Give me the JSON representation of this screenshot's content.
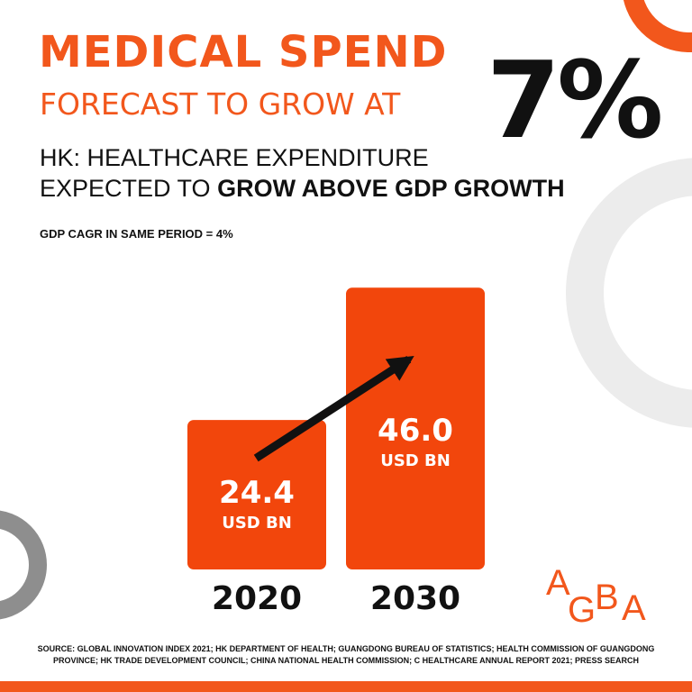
{
  "headline": {
    "title": "MEDICAL SPEND",
    "subtitle": "FORECAST TO GROW AT",
    "growth_rate": "7%"
  },
  "subheading": {
    "line1": "HK: HEALTHCARE EXPENDITURE",
    "line2_prefix": "EXPECTED TO",
    "line2_emphasis": "GROW ABOVE GDP GROWTH"
  },
  "gdp_note": "GDP CAGR IN SAME PERIOD = 4%",
  "chart_data": {
    "type": "bar",
    "title": "HK: HEALTHCARE EXPENDITURE",
    "categories": [
      "2020",
      "2030"
    ],
    "values": [
      24.4,
      46.0
    ],
    "value_labels": [
      "24.4",
      "46.0"
    ],
    "unit": "USD BN",
    "xlabel": "",
    "ylabel": "",
    "ylim": [
      0,
      50
    ],
    "grid": false,
    "legend": "none",
    "annotations": [
      "trend arrow from 2020 bar to 2030 bar"
    ]
  },
  "logo": {
    "letters": [
      "A",
      "G",
      "B",
      "A"
    ]
  },
  "source": "SOURCE: GLOBAL INNOVATION INDEX 2021; HK DEPARTMENT OF HEALTH; GUANGDONG BUREAU OF STATISTICS; HEALTH COMMISSION OF GUANGDONG PROVINCE; HK TRADE DEVELOPMENT COUNCIL; CHINA NATIONAL HEALTH COMMISSION; C HEALTHCARE ANNUAL REPORT 2021; PRESS SEARCH",
  "colors": {
    "accent": "#f2571c",
    "bar": "#f2460c",
    "text": "#111111",
    "ring_light": "#ececec",
    "ring_dark": "#8e8e8e"
  }
}
